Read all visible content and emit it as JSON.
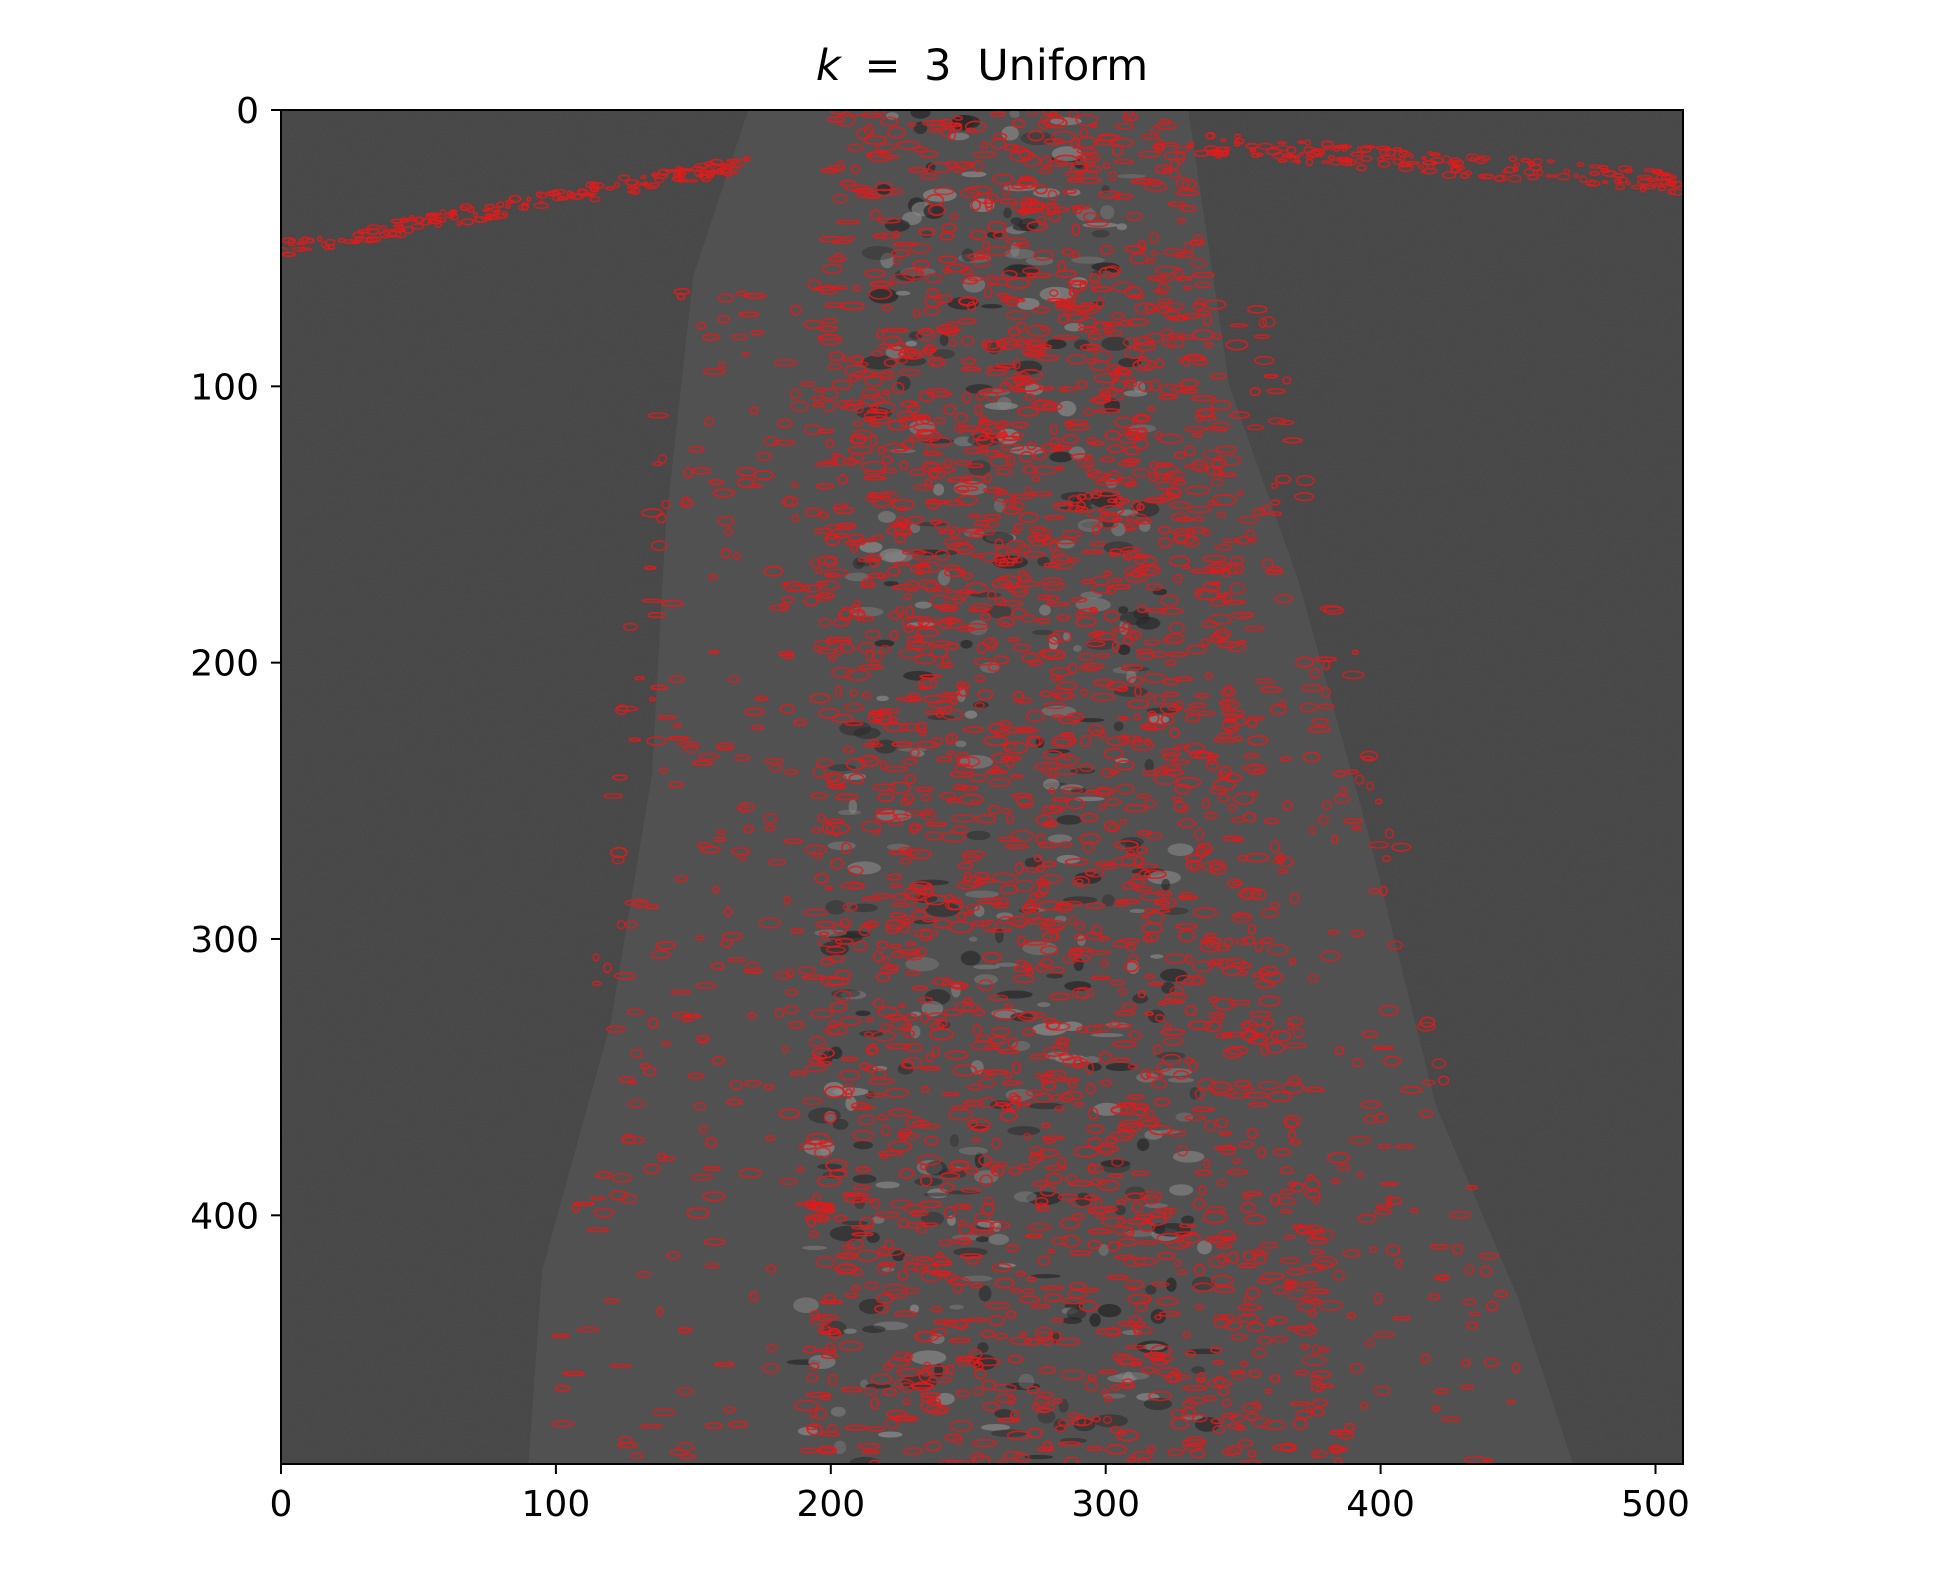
{
  "chart_data": {
    "type": "heatmap",
    "title": {
      "variable": "k",
      "operator": "=",
      "value": "3",
      "label": "Uniform"
    },
    "xlabel": "",
    "ylabel": "",
    "xlim": [
      0,
      510
    ],
    "ylim": [
      490,
      0
    ],
    "x_ticks": [
      0,
      100,
      200,
      300,
      400,
      500
    ],
    "y_ticks": [
      0,
      100,
      200,
      300,
      400
    ],
    "grid": false,
    "colormap": "gray",
    "background_color": "#4a4a4a",
    "overlay_color": "#e01b1b",
    "frame_color": "#000000",
    "overlay_regions": [
      {
        "name": "top-left-edge",
        "x_range": [
          0,
          170
        ],
        "y_range": [
          15,
          55
        ]
      },
      {
        "name": "top-right-edge",
        "x_range": [
          330,
          510
        ],
        "y_range": [
          10,
          40
        ]
      },
      {
        "name": "plume-core",
        "x_range": [
          200,
          340
        ],
        "y_range": [
          0,
          490
        ]
      },
      {
        "name": "plume-spread",
        "x_range": [
          90,
          460
        ],
        "y_range": [
          100,
          490
        ]
      }
    ]
  }
}
